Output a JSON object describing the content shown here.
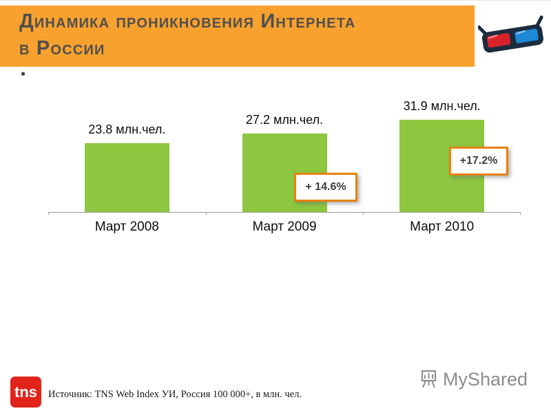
{
  "slide": {
    "title_line1": "Динамика проникновения Интернета",
    "title_line2": "в России",
    "bullet": "•"
  },
  "chart_data": {
    "type": "bar",
    "title": "Динамика проникновения Интернета в России",
    "categories": [
      "Март 2008",
      "Март 2009",
      "Март 2010"
    ],
    "values": [
      23.8,
      27.2,
      31.9
    ],
    "unit": "млн.чел.",
    "value_labels": [
      "23.8 млн.чел.",
      "27.2 млн.чел.",
      "31.9 млн.чел."
    ],
    "growth_callouts": [
      {
        "category": "Март 2009",
        "label": "+ 14.6%"
      },
      {
        "category": "Март 2010",
        "label": "+17.2%"
      }
    ],
    "xlabel": "",
    "ylabel": "",
    "ylim": [
      0,
      35
    ],
    "bar_color": "#8DC63F",
    "grid": false,
    "legend": false
  },
  "footer": {
    "tns_logo": "tns",
    "source": "Источник: TNS Web Index УИ, Россия 100 000+, в млн. чел.",
    "myshared": "MyShared"
  },
  "colors": {
    "header_bg": "#F8A12E",
    "title_text": "#4F4F4F",
    "bar": "#8DC63F",
    "callout_border": "#E8820C",
    "tns_red": "#E2231A",
    "myshared_gray": "#8A8C8E"
  }
}
